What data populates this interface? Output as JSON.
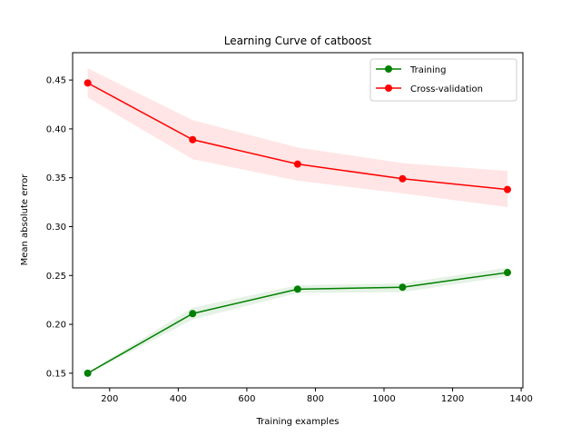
{
  "chart_data": {
    "type": "line",
    "title": "Learning Curve of catboost",
    "xlabel": "Training examples",
    "ylabel": "Mean absolute error",
    "xlim": [
      92,
      1405
    ],
    "ylim": [
      0.135,
      0.478
    ],
    "xticks": [
      200,
      400,
      600,
      800,
      1000,
      1200,
      1400
    ],
    "yticks": [
      0.15,
      0.2,
      0.25,
      0.3,
      0.35,
      0.4,
      0.45
    ],
    "legend_position": "top-right",
    "grid": false,
    "x": [
      136,
      442,
      748,
      1054,
      1360
    ],
    "series": [
      {
        "name": "Training",
        "color": "#008000",
        "values": [
          0.15,
          0.211,
          0.236,
          0.238,
          0.253
        ],
        "band_lower": [
          0.149,
          0.205,
          0.232,
          0.233,
          0.249
        ],
        "band_upper": [
          0.151,
          0.217,
          0.24,
          0.242,
          0.258
        ]
      },
      {
        "name": "Cross-validation",
        "color": "#ff0000",
        "values": [
          0.447,
          0.389,
          0.364,
          0.349,
          0.338
        ],
        "band_lower": [
          0.432,
          0.369,
          0.347,
          0.334,
          0.32
        ],
        "band_upper": [
          0.462,
          0.409,
          0.381,
          0.365,
          0.357
        ]
      }
    ]
  }
}
